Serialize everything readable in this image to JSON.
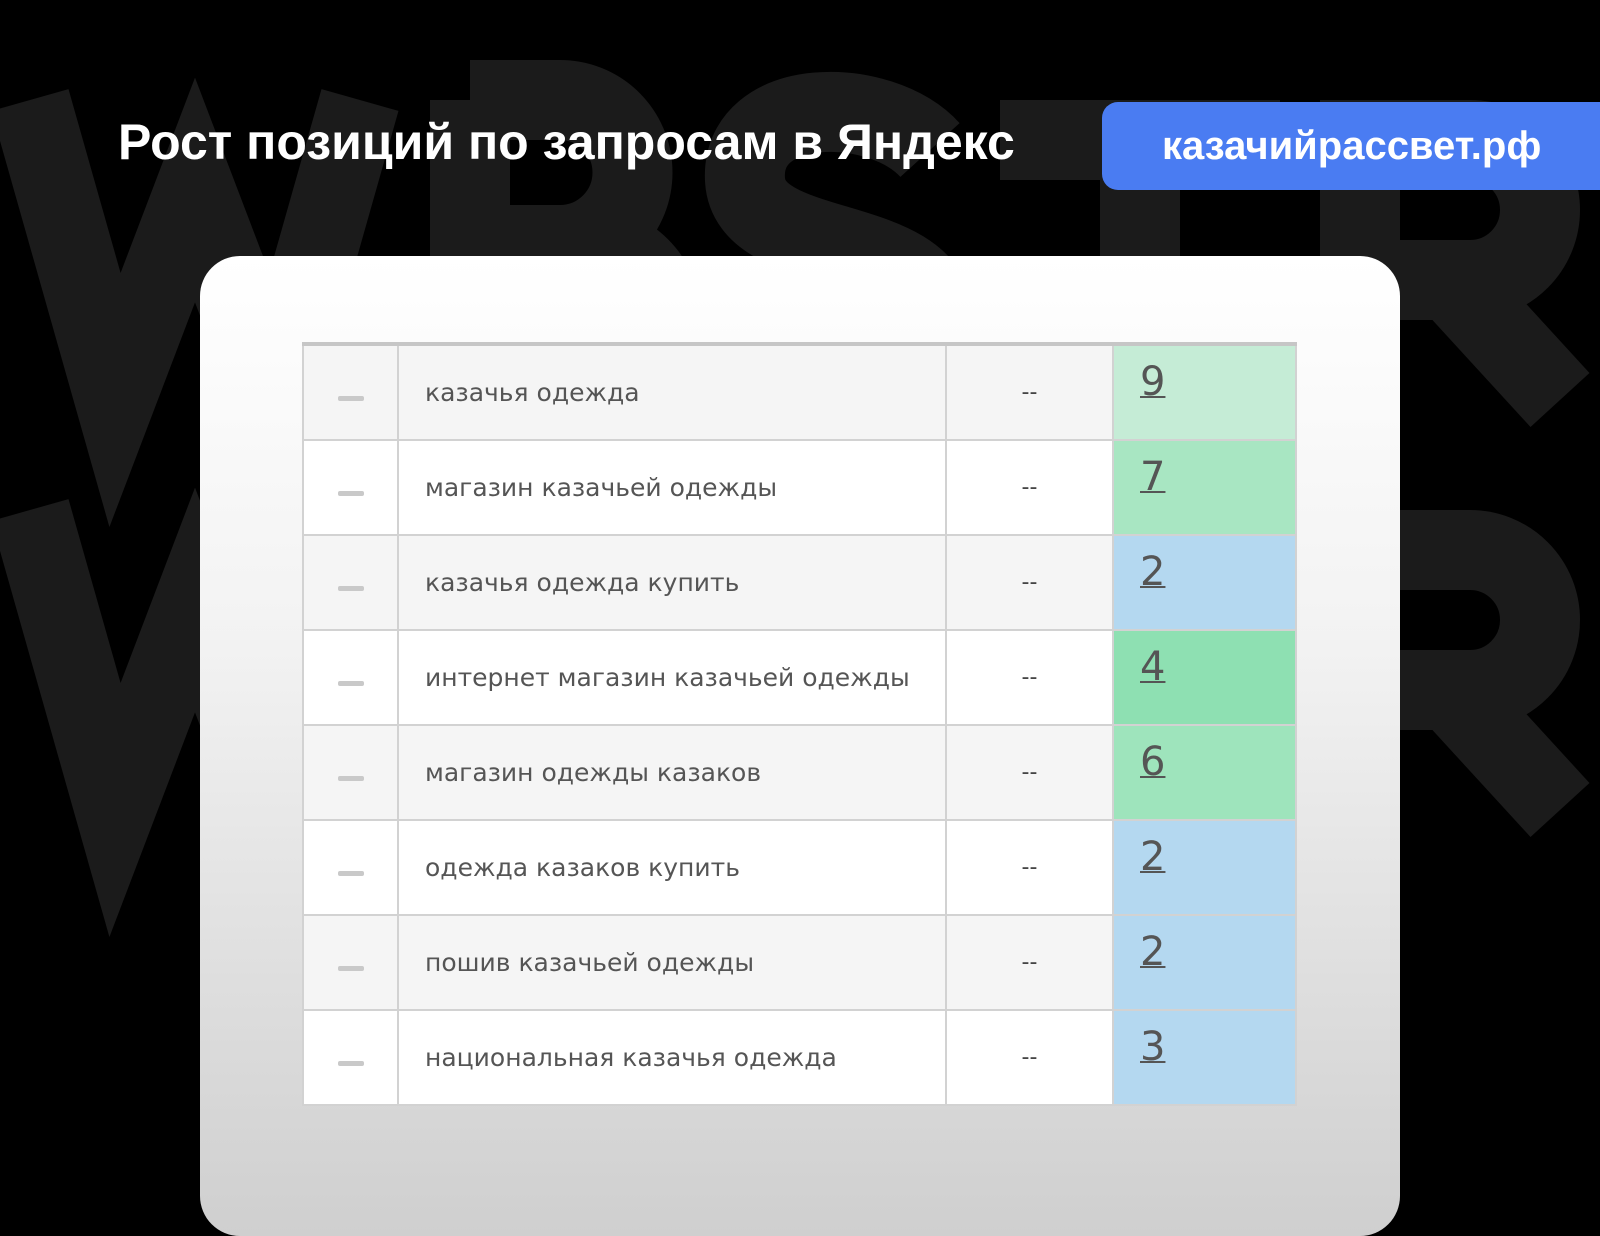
{
  "watermark": {
    "line1": "WBSTR",
    "line2": "WBSTR"
  },
  "header": {
    "title": "Рост позиций по запросам в Яндекс",
    "site_badge": "казачийрассвет.рф"
  },
  "colors": {
    "accent": "#4a7cf2",
    "position_9": "#c5ecd6",
    "position_7": "#a8e6c2",
    "position_2": "#b4d8f0",
    "position_4": "#8ee0b2",
    "position_6": "#9ee4bc",
    "position_3": "#b4d8f0"
  },
  "table": {
    "rows": [
      {
        "query": "казачья одежда",
        "before": "--",
        "position": "9",
        "color": "#c5ecd6"
      },
      {
        "query": "магазин казачьей одежды",
        "before": "--",
        "position": "7",
        "color": "#a8e6c2"
      },
      {
        "query": "казачья одежда купить",
        "before": "--",
        "position": "2",
        "color": "#b4d8f0"
      },
      {
        "query": "интернет магазин казачьей одежды",
        "before": "--",
        "position": "4",
        "color": "#8ee0b2"
      },
      {
        "query": "магазин одежды казаков",
        "before": "--",
        "position": "6",
        "color": "#9ee4bc"
      },
      {
        "query": "одежда казаков купить",
        "before": "--",
        "position": "2",
        "color": "#b4d8f0"
      },
      {
        "query": "пошив казачьей одежды",
        "before": "--",
        "position": "2",
        "color": "#b4d8f0"
      },
      {
        "query": "национальная казачья одежда",
        "before": "--",
        "position": "3",
        "color": "#b4d8f0"
      }
    ]
  }
}
